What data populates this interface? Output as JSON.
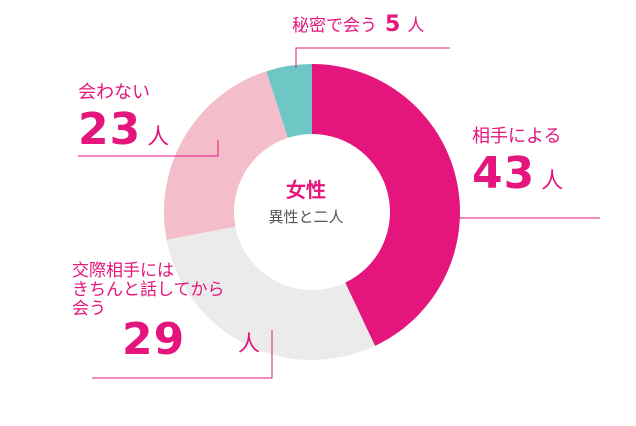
{
  "chart_data": {
    "type": "pie",
    "center_title": "女性",
    "center_subtitle": "異性と二人",
    "unit": "人",
    "categories": [
      "相手による",
      "交際相手にはきちんと話してから会う",
      "会わない",
      "秘密で会う"
    ],
    "values": [
      43,
      29,
      23,
      5
    ],
    "colors": [
      "#e4157c",
      "#ebebeb",
      "#f4bdca",
      "#6ec7c5"
    ]
  },
  "labels": {
    "partner": {
      "name": "相手による",
      "value": "43",
      "unit": "人"
    },
    "talk": {
      "name_lines": [
        "交際相手には",
        "きちんと話してから",
        "会う"
      ],
      "value": "29",
      "unit": "人"
    },
    "nomeet": {
      "name": "会わない",
      "value": "23",
      "unit": "人"
    },
    "secret": {
      "name": "秘密で会う",
      "value": "5",
      "unit": "人"
    }
  }
}
